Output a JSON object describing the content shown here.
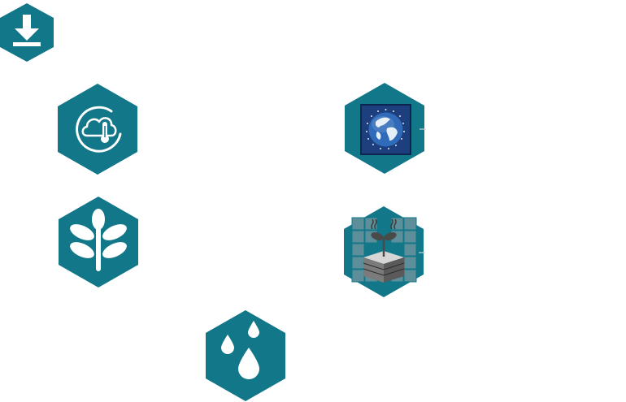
{
  "colors": {
    "hex_fill": "#127789",
    "icon_fill": "#ffffff",
    "globe_frame": "#1d3f7e",
    "soil_grid": "#5d8f9a"
  },
  "tiles": [
    {
      "id": "download",
      "icon": "download-icon"
    },
    {
      "id": "climate",
      "icon": "cloud-thermometer-icon"
    },
    {
      "id": "earth",
      "icon": "globe-icon"
    },
    {
      "id": "plant",
      "icon": "plant-leaves-icon"
    },
    {
      "id": "soil",
      "icon": "soil-layers-icon"
    },
    {
      "id": "water",
      "icon": "water-drops-icon"
    }
  ]
}
